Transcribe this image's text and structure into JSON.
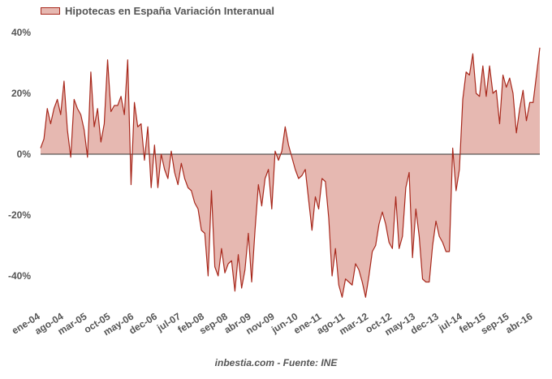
{
  "chart_data": {
    "type": "area",
    "title": "",
    "legend": {
      "position": "top-left",
      "entries": [
        "Hipotecas en España Variación Interanual"
      ]
    },
    "source": "inbestia.com - Fuente: INE",
    "ylim": [
      -50,
      40
    ],
    "yticks": [
      "40%",
      "20%",
      "0%",
      "-20%",
      "-40%"
    ],
    "ytick_values": [
      40,
      20,
      0,
      -20,
      -40
    ],
    "xlabel": "",
    "ylabel": "",
    "grid": false,
    "xtick_labels": [
      "ene-04",
      "ago-04",
      "mar-05",
      "oct-05",
      "may-06",
      "dec-06",
      "jul-07",
      "feb-08",
      "sep-08",
      "abr-09",
      "nov-09",
      "jun-10",
      "ene-11",
      "ago-11",
      "mar-12",
      "oct-12",
      "may-13",
      "dec-13",
      "jul-14",
      "feb-15",
      "sep-15",
      "abr-16"
    ],
    "start_month": "ene-04",
    "colors": {
      "line": "#a8281c",
      "fill": "#e6b8b1",
      "zero_line": "#333333"
    },
    "series": [
      {
        "name": "Hipotecas en España Variación Interanual",
        "values": [
          2,
          5,
          15,
          10,
          15,
          18,
          13,
          24,
          8,
          -1,
          18,
          15,
          13,
          8,
          -1,
          27,
          9,
          15,
          4,
          10,
          31,
          14,
          16,
          16,
          19,
          13,
          31,
          -10,
          17,
          9,
          10,
          -2,
          9,
          -11,
          3,
          -11,
          0,
          -5,
          -8,
          1,
          -6,
          -10,
          -3,
          -8,
          -11,
          -12,
          -16,
          -18,
          -25,
          -26,
          -40,
          -12,
          -37,
          -40,
          -31,
          -39,
          -36,
          -35,
          -45,
          -33,
          -44,
          -38,
          -26,
          -42,
          -25,
          -10,
          -17,
          -8,
          -5,
          -18,
          1,
          -2,
          1,
          9,
          3,
          -1,
          -5,
          -8,
          -7,
          -5,
          -15,
          -25,
          -14,
          -18,
          -8,
          -9,
          -21,
          -40,
          -31,
          -43,
          -47,
          -41,
          -42,
          -43,
          -36,
          -38,
          -42,
          -47,
          -40,
          -32,
          -30,
          -23,
          -19,
          -23,
          -29,
          -31,
          -14,
          -31,
          -27,
          -11,
          -6,
          -34,
          -18,
          -27,
          -41,
          -42,
          -42,
          -30,
          -22,
          -27,
          -29,
          -32,
          -32,
          2,
          -12,
          -5,
          18,
          27,
          26,
          33,
          20,
          19,
          29,
          19,
          29,
          20,
          21,
          10,
          26,
          22,
          25,
          20,
          7,
          15,
          21,
          11,
          17,
          17,
          26,
          35
        ]
      }
    ]
  }
}
